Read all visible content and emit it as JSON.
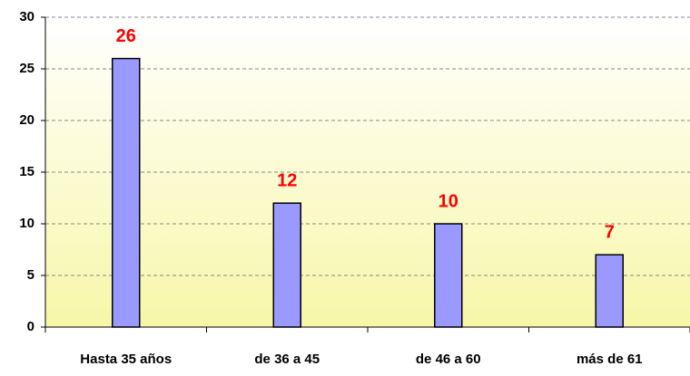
{
  "chart_data": {
    "type": "bar",
    "categories": [
      "Hasta 35 años",
      "de 36 a 45",
      "de 46 a 60",
      "más de 61"
    ],
    "values": [
      26,
      12,
      10,
      7
    ],
    "color": "#9999ff",
    "label_color": "#ff0000",
    "ylim": [
      0,
      30
    ],
    "yticks": [
      0,
      5,
      10,
      15,
      20,
      25,
      30
    ],
    "grid": true
  }
}
